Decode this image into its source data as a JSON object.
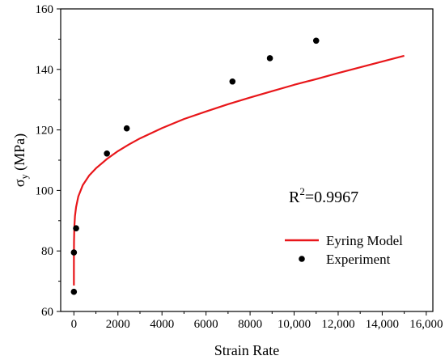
{
  "chart_data": {
    "type": "scatter",
    "xlabel": "Strain Rate",
    "ylabel_main": "σ",
    "ylabel_sub": "y",
    "ylabel_unit": " (MPa)",
    "xlim": [
      -600,
      16300
    ],
    "ylim": [
      60,
      160
    ],
    "xticks": [
      0,
      2000,
      4000,
      6000,
      8000,
      10000,
      12000,
      14000,
      16000
    ],
    "xtick_labels": [
      "0",
      "2000",
      "4000",
      "6000",
      "8000",
      "10,000",
      "12,000",
      "14,000",
      "16,000"
    ],
    "yticks": [
      60,
      80,
      100,
      120,
      140,
      160
    ],
    "ytick_labels": [
      "60",
      "80",
      "100",
      "120",
      "140",
      "160"
    ],
    "grid": false,
    "annotation": {
      "base": "R",
      "sup": "2",
      "rest": "=0.9967"
    },
    "legend": {
      "position": "lower-right",
      "entries": [
        "Eyring Model",
        "Experiment"
      ]
    },
    "series": [
      {
        "name": "Experiment",
        "kind": "scatter",
        "color": "#000000",
        "x": [
          0.001,
          1,
          100,
          1500,
          2400,
          7200,
          8900,
          11000
        ],
        "y": [
          66.5,
          79.5,
          87.5,
          112.2,
          120.5,
          136,
          143.7,
          149.5
        ]
      },
      {
        "name": "Eyring Model",
        "kind": "line",
        "color": "#e8161a",
        "x": [
          0.001,
          0.1,
          1,
          5,
          20,
          50,
          100,
          200,
          400,
          700,
          1000,
          1500,
          2000,
          2500,
          3000,
          4000,
          5000,
          6000,
          7000,
          8000,
          9000,
          10000,
          11000,
          12000,
          13000,
          14000,
          15000
        ],
        "y": [
          68.6,
          73.4,
          78.3,
          83.0,
          87.9,
          91.6,
          94.5,
          98.0,
          101.7,
          105.0,
          107.3,
          110.4,
          113.0,
          115.2,
          117.2,
          120.6,
          123.6,
          126.1,
          128.5,
          130.7,
          132.8,
          134.9,
          136.8,
          138.8,
          140.7,
          142.6,
          144.5
        ]
      }
    ]
  }
}
